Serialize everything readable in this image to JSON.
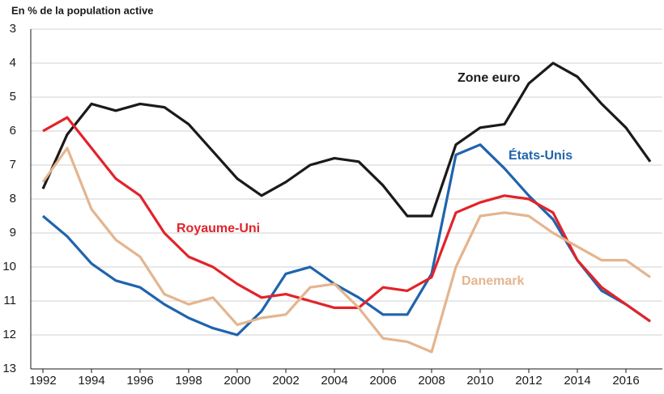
{
  "chart_data": {
    "type": "line",
    "title": "En % de la population active",
    "x": [
      1992,
      1993,
      1994,
      1995,
      1996,
      1997,
      1998,
      1999,
      2000,
      2001,
      2002,
      2003,
      2004,
      2005,
      2006,
      2007,
      2008,
      2009,
      2010,
      2011,
      2012,
      2013,
      2014,
      2015,
      2016,
      2017
    ],
    "series": [
      {
        "name": "Zone euro",
        "color": "#1a1a1a",
        "values": [
          7.7,
          6.1,
          5.2,
          5.4,
          5.2,
          5.3,
          5.8,
          6.6,
          7.4,
          7.9,
          7.5,
          7.0,
          6.8,
          6.9,
          7.6,
          8.5,
          8.5,
          6.4,
          5.9,
          5.8,
          4.6,
          4.0,
          4.4,
          5.2,
          5.9,
          6.9
        ]
      },
      {
        "name": "États-Unis",
        "color": "#1f64ad",
        "values": [
          8.5,
          9.1,
          9.9,
          10.4,
          10.6,
          11.1,
          11.5,
          11.8,
          12.0,
          11.3,
          10.2,
          10.0,
          10.5,
          10.9,
          11.4,
          11.4,
          10.2,
          6.7,
          6.4,
          7.1,
          7.9,
          8.6,
          9.8,
          10.7,
          11.1,
          11.6
        ]
      },
      {
        "name": "Royaume-Uni",
        "color": "#e2232a",
        "values": [
          6.0,
          5.6,
          6.5,
          7.4,
          7.9,
          9.0,
          9.7,
          10.0,
          10.5,
          10.9,
          10.8,
          11.0,
          11.2,
          11.2,
          10.6,
          10.7,
          10.3,
          8.4,
          8.1,
          7.9,
          8.0,
          8.4,
          9.8,
          10.6,
          11.1,
          11.6
        ]
      },
      {
        "name": "Danemark",
        "color": "#e4b58f",
        "values": [
          7.5,
          6.5,
          8.3,
          9.2,
          9.7,
          10.8,
          11.1,
          10.9,
          11.7,
          11.5,
          11.4,
          10.6,
          10.5,
          11.2,
          12.1,
          12.2,
          12.5,
          10.0,
          8.5,
          8.4,
          8.5,
          9.0,
          9.4,
          9.8,
          9.8,
          10.3
        ]
      }
    ],
    "xlim": [
      1991.5,
      2017.5
    ],
    "xticks": [
      1992,
      1994,
      1996,
      1998,
      2000,
      2002,
      2004,
      2006,
      2008,
      2010,
      2012,
      2014,
      2016
    ],
    "ylim": [
      3,
      13
    ],
    "yticks": [
      3,
      4,
      5,
      6,
      7,
      8,
      9,
      10,
      11,
      12,
      13
    ],
    "y_inverted": true,
    "grid": true
  }
}
